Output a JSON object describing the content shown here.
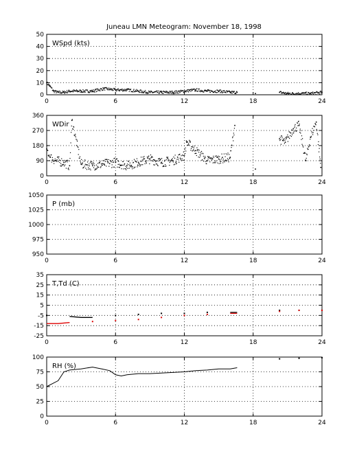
{
  "title": "Juneau LMN Meteogram:  November 18, 1998",
  "colors": {
    "background": "#ffffff",
    "axes": "#000000",
    "primary": "#000000",
    "dewpoint": "#dd0000"
  },
  "chart_data": [
    {
      "type": "scatter",
      "label": "WSpd (kts)",
      "xlim": [
        0,
        24
      ],
      "ylim": [
        0,
        50
      ],
      "xticks": [
        "0",
        "6",
        "12",
        "18",
        "24"
      ],
      "yticks": [
        "0",
        "10",
        "20",
        "30",
        "40",
        "50"
      ],
      "grid": true,
      "series": [
        {
          "color": "#000000",
          "x": [
            0,
            0.3,
            0.6,
            1,
            1.5,
            2,
            3,
            4,
            5,
            6,
            7,
            8,
            9,
            10,
            11,
            12,
            13,
            14,
            15,
            16,
            16.6,
            18.2,
            20.3,
            21,
            22,
            23,
            24
          ],
          "y": [
            10,
            7,
            3,
            2,
            2,
            3,
            3,
            3,
            5,
            4,
            4,
            3,
            2,
            2,
            2,
            3,
            4,
            3,
            3,
            2,
            2,
            1,
            2,
            1,
            1,
            1,
            2
          ]
        }
      ]
    },
    {
      "type": "scatter",
      "label": "WDir",
      "xlim": [
        0,
        24
      ],
      "ylim": [
        0,
        360
      ],
      "xticks": [
        "0",
        "6",
        "12",
        "18",
        "24"
      ],
      "yticks": [
        "0",
        "90",
        "180",
        "270",
        "360"
      ],
      "grid": true,
      "series": [
        {
          "color": "#000000",
          "x": [
            0,
            0.3,
            0.8,
            1.5,
            2,
            2.2,
            3,
            4,
            5,
            6,
            7,
            8,
            9,
            10,
            11,
            12,
            12.2,
            13,
            14,
            15,
            16,
            16.4,
            18.2,
            20.3,
            20.8,
            21.5,
            22,
            22.6,
            23,
            23.5,
            23.9
          ],
          "y": [
            160,
            110,
            90,
            80,
            60,
            330,
            70,
            60,
            70,
            80,
            60,
            80,
            100,
            80,
            90,
            120,
            200,
            150,
            90,
            100,
            110,
            300,
            40,
            220,
            200,
            280,
            300,
            90,
            230,
            320,
            50
          ]
        }
      ]
    },
    {
      "type": "line",
      "label": "P (mb)",
      "xlim": [
        0,
        24
      ],
      "ylim": [
        950,
        1050
      ],
      "xticks": [
        "0",
        "6",
        "12",
        "18",
        "24"
      ],
      "yticks": [
        "950",
        "975",
        "1000",
        "1025",
        "1050"
      ],
      "grid": true,
      "series": []
    },
    {
      "type": "line",
      "label": "T,Td (C)",
      "xlim": [
        0,
        24
      ],
      "ylim": [
        -25,
        35
      ],
      "xticks": [
        "0",
        "6",
        "12",
        "18",
        "24"
      ],
      "yticks": [
        "-25",
        "-15",
        "-5",
        "5",
        "15",
        "25",
        "35"
      ],
      "grid": true,
      "series": [
        {
          "color": "#000000",
          "x": [
            0,
            2,
            3,
            4,
            6,
            8,
            10,
            12,
            14,
            16,
            16.6,
            20.3,
            22,
            24
          ],
          "y": [
            -5,
            -6,
            -7,
            -7,
            -5,
            -4,
            -3,
            -3,
            -2,
            -2,
            -2,
            0,
            0,
            0
          ]
        },
        {
          "color": "#dd0000",
          "x": [
            0,
            1,
            2,
            4,
            6,
            8,
            10,
            12,
            14,
            16,
            16.6,
            20.3,
            22,
            24
          ],
          "y": [
            -13,
            -13,
            -12,
            -11,
            -10,
            -9,
            -7,
            -5,
            -4,
            -3,
            -3,
            -1,
            0,
            0
          ]
        }
      ]
    },
    {
      "type": "line",
      "label": "RH (%)",
      "xlim": [
        0,
        24
      ],
      "ylim": [
        0,
        100
      ],
      "xticks": [
        "0",
        "6",
        "12",
        "18",
        "24"
      ],
      "yticks": [
        "0",
        "25",
        "50",
        "75",
        "100"
      ],
      "grid": true,
      "series": [
        {
          "color": "#000000",
          "x": [
            0,
            0.5,
            1,
            1.5,
            2,
            3,
            4,
            4.8,
            5.5,
            6,
            6.5,
            7,
            8,
            9,
            10,
            11,
            12,
            13,
            14,
            15,
            16,
            16.6,
            20.3,
            22,
            24
          ],
          "y": [
            50,
            55,
            60,
            75,
            78,
            80,
            83,
            80,
            77,
            70,
            68,
            70,
            72,
            72,
            73,
            74,
            75,
            77,
            78,
            80,
            80,
            82,
            97,
            98,
            99
          ]
        }
      ]
    }
  ]
}
